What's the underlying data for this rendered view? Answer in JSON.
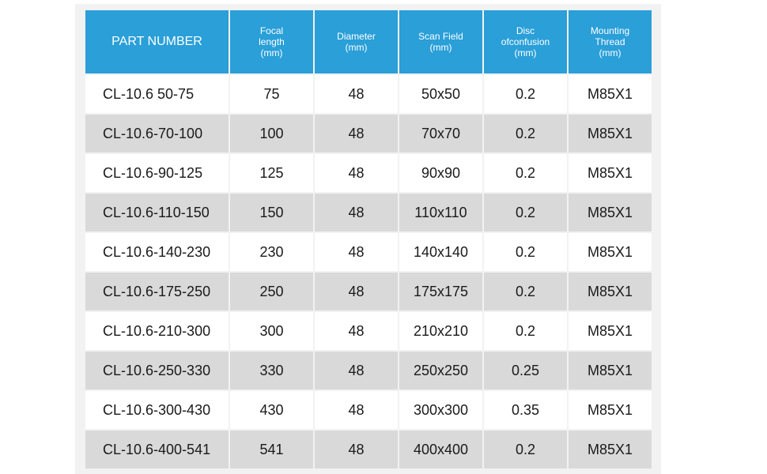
{
  "table": {
    "headers": [
      "PART NUMBER",
      "Focal\nlength\n(mm)",
      "Diameter\n(mm)",
      "Scan Field\n(mm)",
      "Disc\nofconfusion\n(mm)",
      "Mounting\nThread\n(mm)"
    ],
    "rows": [
      [
        "CL-10.6 50-75",
        "75",
        "48",
        "50x50",
        "0.2",
        "M85X1"
      ],
      [
        "CL-10.6-70-100",
        "100",
        "48",
        "70x70",
        "0.2",
        "M85X1"
      ],
      [
        "CL-10.6-90-125",
        "125",
        "48",
        "90x90",
        "0.2",
        "M85X1"
      ],
      [
        "CL-10.6-110-150",
        "150",
        "48",
        "110x110",
        "0.2",
        "M85X1"
      ],
      [
        "CL-10.6-140-230",
        "230",
        "48",
        "140x140",
        "0.2",
        "M85X1"
      ],
      [
        "CL-10.6-175-250",
        "250",
        "48",
        "175x175",
        "0.2",
        "M85X1"
      ],
      [
        "CL-10.6-210-300",
        "300",
        "48",
        "210x210",
        "0.2",
        "M85X1"
      ],
      [
        "CL-10.6-250-330",
        "330",
        "48",
        "250x250",
        "0.25",
        "M85X1"
      ],
      [
        "CL-10.6-300-430",
        "430",
        "48",
        "300x300",
        "0.35",
        "M85X1"
      ],
      [
        "CL-10.6-400-541",
        "541",
        "48",
        "400x400",
        "0.2",
        "M85X1"
      ]
    ]
  },
  "colors": {
    "header_bg": "#2a9fd8",
    "header_text": "#ffffff",
    "row_white": "#ffffff",
    "row_grey": "#d9d9d9"
  }
}
